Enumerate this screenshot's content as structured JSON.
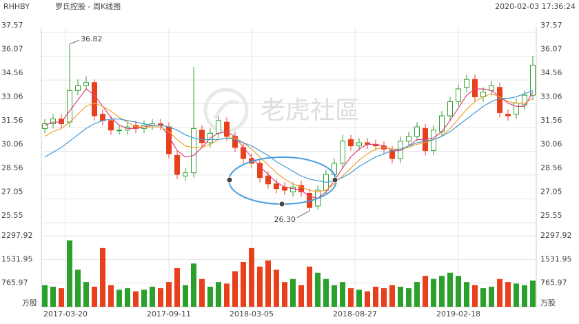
{
  "header": {
    "symbol": "RHHBY",
    "name": "罗氏控股 - 周K线图",
    "timestamp": "2020-02-03 17:36:24",
    "watermark": "老虎社區"
  },
  "chart_data": {
    "type": "candlestick",
    "open": [
      31.5,
      31.8,
      32.1,
      31.9,
      33.9,
      34.2,
      34.4,
      32.4,
      32.0,
      31.4,
      31.4,
      31.7,
      31.5,
      31.7,
      31.8,
      31.6,
      29.8,
      28.5,
      28.7,
      31.4,
      30.6,
      31.2,
      31.9,
      31.0,
      30.3,
      29.6,
      29.3,
      28.5,
      28.0,
      27.8,
      27.5,
      27.9,
      27.4,
      26.6,
      27.6,
      28.6,
      29.3,
      30.8,
      30.4,
      30.6,
      30.5,
      30.4,
      30.1,
      29.6,
      30.7,
      31.0,
      31.5,
      30.1,
      31.3,
      32.3,
      33.2,
      34.1,
      34.6,
      33.5,
      33.9,
      34.1,
      32.4,
      32.4,
      33.0,
      33.6
    ],
    "high": [
      32.1,
      32.4,
      32.4,
      36.82,
      34.6,
      34.8,
      34.6,
      32.7,
      32.3,
      31.7,
      31.9,
      32.0,
      32.0,
      32.1,
      32.1,
      31.9,
      30.1,
      29.0,
      35.4,
      31.7,
      31.5,
      32.3,
      32.2,
      31.3,
      30.6,
      29.9,
      29.6,
      28.8,
      28.3,
      28.1,
      28.1,
      28.2,
      27.7,
      27.9,
      28.9,
      29.6,
      31.1,
      31.1,
      30.9,
      30.9,
      30.8,
      30.7,
      30.4,
      31.0,
      31.3,
      31.9,
      31.8,
      31.7,
      32.6,
      33.5,
      34.3,
      34.9,
      34.9,
      34.1,
      34.5,
      34.4,
      32.7,
      33.4,
      33.9,
      36.1
    ],
    "low": [
      31.2,
      31.5,
      31.5,
      31.6,
      33.6,
      33.9,
      32.0,
      31.7,
      31.1,
      31.1,
      31.1,
      31.2,
      31.2,
      31.4,
      31.4,
      29.6,
      28.3,
      28.2,
      28.4,
      30.3,
      30.3,
      30.9,
      30.7,
      30.0,
      29.3,
      29.0,
      28.1,
      27.7,
      27.4,
      27.3,
      27.2,
      27.2,
      26.3,
      26.4,
      27.3,
      28.3,
      29.0,
      30.1,
      30.1,
      30.2,
      30.1,
      29.9,
      29.3,
      29.3,
      30.4,
      30.7,
      29.8,
      29.8,
      31.0,
      32.0,
      32.9,
      33.8,
      33.2,
      33.2,
      33.6,
      32.2,
      32.0,
      32.1,
      32.7,
      33.3
    ],
    "close": [
      31.8,
      32.1,
      31.8,
      33.9,
      34.2,
      34.4,
      32.3,
      32.0,
      31.4,
      31.4,
      31.6,
      31.5,
      31.7,
      31.8,
      31.7,
      29.9,
      28.6,
      28.7,
      31.5,
      30.6,
      31.2,
      32.0,
      31.0,
      30.3,
      29.6,
      29.3,
      28.4,
      28.0,
      27.7,
      27.6,
      27.8,
      27.5,
      26.5,
      27.6,
      28.6,
      29.3,
      30.7,
      30.4,
      30.6,
      30.5,
      30.4,
      30.2,
      29.6,
      30.7,
      31.0,
      31.6,
      30.1,
      31.4,
      32.3,
      33.2,
      34.0,
      34.6,
      33.5,
      33.8,
      34.2,
      32.5,
      32.3,
      33.1,
      33.6,
      35.5
    ],
    "volume": [
      700,
      650,
      600,
      2150,
      1200,
      800,
      650,
      1900,
      700,
      550,
      600,
      500,
      550,
      650,
      600,
      800,
      1250,
      700,
      1400,
      900,
      650,
      800,
      750,
      1150,
      1450,
      1900,
      1300,
      1500,
      1200,
      800,
      900,
      700,
      1300,
      1100,
      900,
      700,
      800,
      600,
      550,
      500,
      650,
      600,
      700,
      650,
      600,
      800,
      1000,
      900,
      1000,
      1100,
      1000,
      800,
      700,
      600,
      650,
      900,
      800,
      750,
      700,
      850
    ],
    "up_color": "#2ca02c",
    "down_color": "#e8401c",
    "series": [
      {
        "color": "#e0407a",
        "values": [
          31.7,
          31.9,
          31.9,
          32.6,
          33.3,
          34.0,
          33.6,
          32.9,
          32.2,
          31.7,
          31.5,
          31.5,
          31.6,
          31.7,
          31.7,
          31.0,
          30.1,
          29.7,
          29.8,
          30.3,
          30.9,
          31.2,
          31.3,
          31.0,
          30.3,
          29.7,
          29.1,
          28.6,
          28.1,
          27.8,
          27.7,
          27.6,
          27.2,
          27.1,
          27.5,
          28.2,
          29.0,
          29.7,
          30.2,
          30.5,
          30.5,
          30.4,
          30.1,
          30.1,
          30.4,
          30.8,
          30.8,
          30.9,
          31.3,
          32.0,
          32.8,
          33.6,
          34.0,
          34.0,
          33.9,
          33.5,
          33.1,
          32.9,
          32.9,
          33.8
        ]
      },
      {
        "color": "#f0a030",
        "values": [
          31.0,
          31.3,
          31.5,
          31.9,
          32.4,
          32.9,
          33.1,
          32.9,
          32.6,
          32.2,
          31.9,
          31.6,
          31.6,
          31.6,
          31.6,
          31.3,
          30.8,
          30.4,
          30.3,
          30.3,
          30.5,
          30.8,
          30.9,
          30.9,
          30.6,
          30.2,
          29.7,
          29.2,
          28.7,
          28.3,
          28.0,
          27.8,
          27.6,
          27.5,
          27.6,
          28.0,
          28.5,
          29.0,
          29.5,
          29.9,
          30.2,
          30.3,
          30.2,
          30.2,
          30.3,
          30.5,
          30.6,
          30.8,
          31.0,
          31.5,
          32.1,
          32.7,
          33.2,
          33.5,
          33.7,
          33.5,
          33.2,
          33.1,
          33.1,
          33.4
        ]
      },
      {
        "color": "#3d9ad8",
        "values": [
          29.7,
          30.0,
          30.3,
          30.7,
          31.1,
          31.5,
          31.8,
          32.0,
          32.1,
          32.1,
          32.0,
          31.9,
          31.8,
          31.7,
          31.7,
          31.6,
          31.4,
          31.1,
          30.9,
          30.8,
          30.8,
          30.8,
          30.9,
          30.8,
          30.6,
          30.4,
          30.1,
          29.8,
          29.4,
          29.1,
          28.8,
          28.5,
          28.3,
          28.2,
          28.1,
          28.2,
          28.4,
          28.7,
          29.1,
          29.4,
          29.7,
          29.9,
          30.1,
          30.2,
          30.4,
          30.6,
          30.7,
          30.8,
          31.0,
          31.3,
          31.7,
          32.1,
          32.5,
          32.9,
          33.2,
          33.4,
          33.4,
          33.5,
          33.7,
          33.9
        ]
      }
    ],
    "ylim": [
      25.55,
      37.57
    ],
    "yticks": [
      37.57,
      36.07,
      34.56,
      33.06,
      31.56,
      30.06,
      28.56,
      27.05,
      25.55
    ],
    "volume_ylim": [
      0,
      2297.92
    ],
    "volume_yticks": [
      2297.92,
      1531.95,
      765.97
    ],
    "volume_unit": "万股",
    "xticks": [
      {
        "value": 2.5,
        "label": "2017-03-20"
      },
      {
        "value": 15,
        "label": "2017-09-11"
      },
      {
        "value": 25,
        "label": "2018-03-05"
      },
      {
        "value": 37.5,
        "label": "2018-08-27"
      },
      {
        "value": 50,
        "label": "2019-02-18"
      }
    ],
    "annotations": [
      "36.82",
      "26.30"
    ],
    "grid": true
  }
}
